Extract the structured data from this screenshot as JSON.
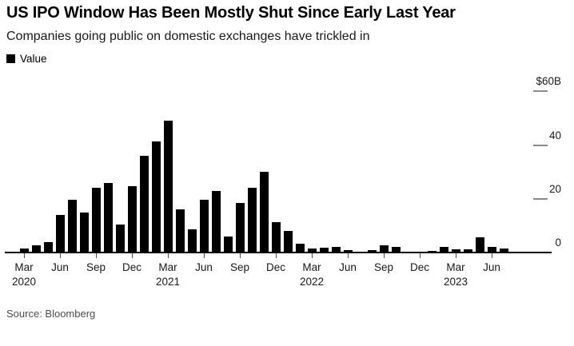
{
  "header": {
    "title": "US IPO Window Has Been Mostly Shut Since Early Last Year",
    "subtitle": "Companies going public on domestic exchanges have trickled in"
  },
  "legend": {
    "label": "Value",
    "swatch_color": "#000000"
  },
  "source": {
    "text": "Source: Bloomberg"
  },
  "chart_data": {
    "type": "bar",
    "title": "US IPO Window Has Been Mostly Shut Since Early Last Year",
    "subtitle": "Companies going public on domestic exchanges have trickled in",
    "series_name": "Value",
    "unit": "USD billions",
    "bar_color": "#000000",
    "grid": "right-side-dashes",
    "legend_position": "top-left",
    "ylim": [
      0,
      60
    ],
    "x": [
      "2020-03",
      "2020-04",
      "2020-05",
      "2020-06",
      "2020-07",
      "2020-08",
      "2020-09",
      "2020-10",
      "2020-11",
      "2020-12",
      "2021-01",
      "2021-02",
      "2021-03",
      "2021-04",
      "2021-05",
      "2021-06",
      "2021-07",
      "2021-08",
      "2021-09",
      "2021-10",
      "2021-11",
      "2021-12",
      "2022-01",
      "2022-02",
      "2022-03",
      "2022-04",
      "2022-05",
      "2022-06",
      "2022-07",
      "2022-08",
      "2022-09",
      "2022-10",
      "2022-11",
      "2022-12",
      "2023-01",
      "2023-02",
      "2023-03",
      "2023-04",
      "2023-05",
      "2023-06",
      "2023-07"
    ],
    "values": [
      1.5,
      2.8,
      4.0,
      13.9,
      19.6,
      15.0,
      24.0,
      25.8,
      10.3,
      24.6,
      36.0,
      41.5,
      49.0,
      16.2,
      8.5,
      19.6,
      22.8,
      6.0,
      18.4,
      24.1,
      30.1,
      11.4,
      8.0,
      3.3,
      1.6,
      1.7,
      2.2,
      1.0,
      0.4,
      1.0,
      2.6,
      2.0,
      0.3,
      0.2,
      0.6,
      2.1,
      1.3,
      1.2,
      5.7,
      2.0,
      1.6
    ],
    "y_ticks": [
      {
        "value": 60,
        "label": "$60B"
      },
      {
        "value": 40,
        "label": "40"
      },
      {
        "value": 20,
        "label": "20"
      },
      {
        "value": 0,
        "label": "0"
      }
    ],
    "x_ticks": [
      {
        "index": 0,
        "label": "Mar",
        "year": "2020"
      },
      {
        "index": 3,
        "label": "Jun"
      },
      {
        "index": 6,
        "label": "Sep"
      },
      {
        "index": 9,
        "label": "Dec"
      },
      {
        "index": 12,
        "label": "Mar",
        "year": "2021"
      },
      {
        "index": 15,
        "label": "Jun"
      },
      {
        "index": 18,
        "label": "Sep"
      },
      {
        "index": 21,
        "label": "Dec"
      },
      {
        "index": 24,
        "label": "Mar",
        "year": "2022"
      },
      {
        "index": 27,
        "label": "Jun"
      },
      {
        "index": 30,
        "label": "Sep"
      },
      {
        "index": 33,
        "label": "Dec"
      },
      {
        "index": 36,
        "label": "Mar",
        "year": "2023"
      },
      {
        "index": 39,
        "label": "Jun"
      }
    ]
  }
}
